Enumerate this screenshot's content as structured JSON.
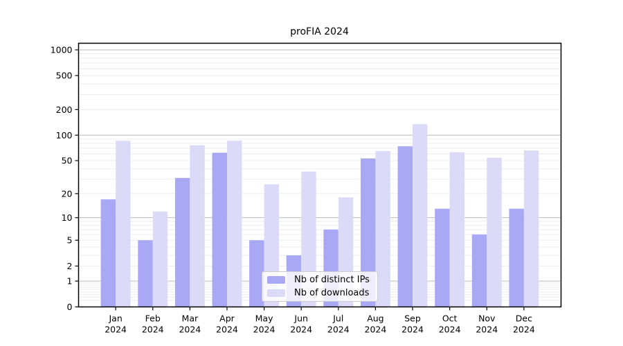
{
  "title": "proFIA 2024",
  "chart_data": {
    "type": "bar",
    "title": "proFIA 2024",
    "categories": [
      "Jan 2024",
      "Feb 2024",
      "Mar 2024",
      "Apr 2024",
      "May 2024",
      "Jun 2024",
      "Jul 2024",
      "Aug 2024",
      "Sep 2024",
      "Oct 2024",
      "Nov 2024",
      "Dec 2024"
    ],
    "series": [
      {
        "name": "Nb of distinct IPs",
        "color": "#a8a8f5",
        "values": [
          17,
          5,
          31,
          62,
          5,
          3,
          7,
          53,
          74,
          13,
          6,
          13
        ]
      },
      {
        "name": "Nb of downloads",
        "color": "#dbdbf8",
        "values": [
          86,
          12,
          76,
          86,
          26,
          37,
          18,
          65,
          135,
          63,
          54,
          66
        ]
      }
    ],
    "y_scale": "log1p",
    "y_ticks": [
      0,
      1,
      2,
      5,
      10,
      20,
      50,
      100,
      200,
      500,
      1000
    ],
    "ylim": [
      0,
      1400
    ],
    "xlabel": "",
    "ylabel": "",
    "grid": "horizontal",
    "legend_position": "inside-bottom-center",
    "colors": {
      "major_grid": "#c3c3c3",
      "minor_grid": "#ededed",
      "spine": "#000000",
      "text": "#000000",
      "background": "#ffffff"
    }
  }
}
